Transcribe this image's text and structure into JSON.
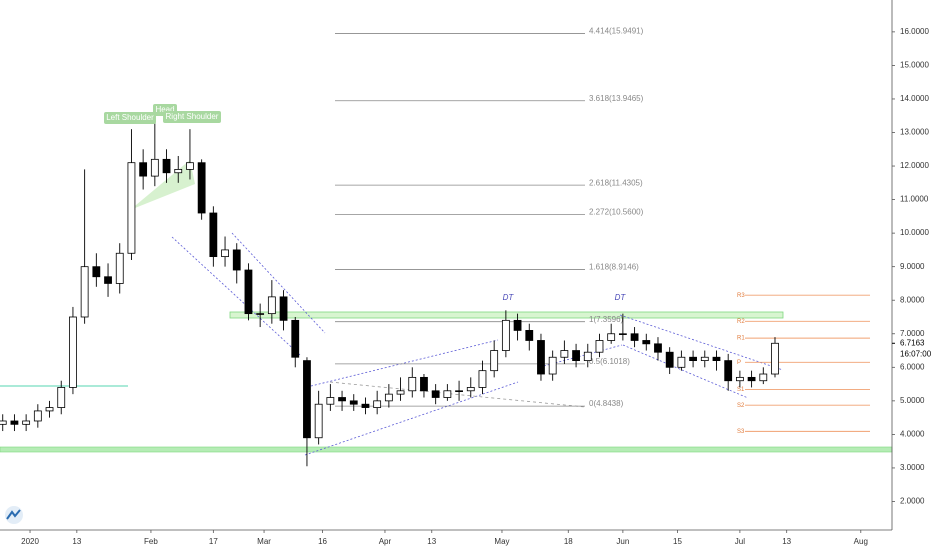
{
  "chart_data": {
    "type": "candlestick",
    "x": [
      -7,
      -4,
      -1,
      2,
      5,
      8,
      11,
      14,
      17,
      20,
      23,
      26,
      29,
      32,
      35,
      38,
      41,
      44,
      47,
      50,
      53,
      56,
      59,
      62,
      65,
      68,
      71,
      74,
      77,
      80,
      83,
      86,
      89,
      92,
      95,
      98,
      101,
      104,
      107,
      110,
      113,
      116,
      119,
      122,
      125,
      128,
      131,
      134,
      137,
      140,
      143,
      146,
      149,
      152,
      155,
      158,
      161,
      164,
      167,
      170,
      173,
      176,
      179,
      182,
      185,
      188,
      191
    ],
    "open": [
      4.3,
      4.4,
      4.3,
      4.4,
      4.7,
      4.8,
      5.4,
      7.5,
      9.0,
      8.7,
      8.5,
      9.4,
      12.1,
      11.7,
      12.2,
      11.8,
      11.9,
      12.1,
      10.6,
      9.3,
      9.5,
      8.9,
      7.6,
      7.6,
      8.1,
      7.4,
      6.2,
      3.9,
      4.9,
      5.1,
      5.0,
      4.9,
      4.8,
      5.0,
      5.2,
      5.3,
      5.7,
      5.3,
      5.1,
      5.3,
      5.3,
      5.4,
      5.9,
      6.5,
      7.4,
      7.1,
      6.8,
      5.8,
      6.3,
      6.5,
      6.2,
      6.45,
      6.8,
      7.0,
      7.0,
      6.8,
      6.7,
      6.45,
      6.0,
      6.3,
      6.2,
      6.3,
      6.2,
      5.6,
      5.7,
      5.6,
      5.8
    ],
    "high": [
      4.6,
      4.6,
      4.6,
      4.9,
      5.0,
      5.6,
      7.8,
      11.9,
      9.4,
      9.1,
      9.7,
      13.1,
      12.5,
      13.3,
      12.5,
      12.3,
      13.1,
      12.2,
      10.8,
      9.9,
      9.7,
      9.1,
      7.9,
      8.6,
      8.3,
      7.5,
      6.3,
      5.3,
      5.5,
      5.3,
      5.2,
      5.1,
      5.3,
      5.5,
      5.7,
      6.0,
      5.8,
      5.5,
      5.5,
      5.6,
      5.7,
      6.2,
      6.8,
      7.7,
      7.6,
      7.3,
      7.0,
      6.5,
      6.8,
      6.7,
      6.7,
      7.0,
      7.3,
      7.6,
      7.2,
      7.0,
      6.9,
      6.6,
      6.5,
      6.5,
      6.5,
      6.5,
      6.4,
      5.9,
      5.9,
      6.0,
      6.9
    ],
    "low": [
      4.1,
      4.1,
      4.1,
      4.2,
      4.5,
      4.6,
      5.2,
      7.3,
      8.4,
      8.1,
      8.2,
      9.2,
      11.3,
      11.4,
      11.5,
      11.5,
      11.6,
      10.4,
      9.0,
      9.0,
      8.5,
      7.4,
      7.2,
      7.3,
      7.1,
      6.0,
      3.05,
      3.7,
      4.7,
      4.7,
      4.7,
      4.6,
      4.6,
      4.8,
      5.0,
      5.1,
      5.1,
      4.9,
      5.0,
      5.0,
      5.1,
      5.2,
      5.7,
      6.3,
      6.8,
      6.5,
      5.6,
      5.6,
      6.1,
      6.0,
      6.0,
      6.3,
      6.7,
      6.8,
      6.6,
      6.5,
      6.2,
      5.8,
      5.9,
      6.0,
      6.0,
      5.9,
      5.3,
      5.4,
      5.4,
      5.5,
      5.7
    ],
    "close": [
      4.4,
      4.3,
      4.4,
      4.7,
      4.8,
      5.4,
      7.5,
      9.0,
      8.7,
      8.5,
      9.4,
      12.1,
      11.7,
      12.2,
      11.8,
      11.9,
      12.1,
      10.6,
      9.3,
      9.5,
      8.9,
      7.6,
      7.6,
      8.1,
      7.4,
      6.3,
      3.9,
      4.9,
      5.1,
      5.0,
      4.9,
      4.8,
      5.0,
      5.2,
      5.3,
      5.7,
      5.3,
      5.1,
      5.3,
      5.3,
      5.4,
      5.9,
      6.5,
      7.4,
      7.1,
      6.8,
      5.8,
      6.3,
      6.5,
      6.2,
      6.45,
      6.8,
      7.0,
      7.0,
      6.8,
      6.7,
      6.45,
      6.0,
      6.3,
      6.2,
      6.3,
      6.2,
      5.6,
      5.7,
      5.6,
      5.8,
      6.7163
    ],
    "xlim": [
      -7.7,
      221
    ],
    "ylim": [
      1.15,
      16.95
    ],
    "grid": false,
    "xticks": [
      {
        "value": 0,
        "label": "2020"
      },
      {
        "value": 12,
        "label": "13"
      },
      {
        "value": 31,
        "label": "Feb"
      },
      {
        "value": 47,
        "label": "17"
      },
      {
        "value": 60,
        "label": "Mar"
      },
      {
        "value": 75,
        "label": "16"
      },
      {
        "value": 91,
        "label": "Apr"
      },
      {
        "value": 103,
        "label": "13"
      },
      {
        "value": 121,
        "label": "May"
      },
      {
        "value": 138,
        "label": "18"
      },
      {
        "value": 152,
        "label": "Jun"
      },
      {
        "value": 166,
        "label": "15"
      },
      {
        "value": 182,
        "label": "Jul"
      },
      {
        "value": 194,
        "label": "13"
      },
      {
        "value": 213,
        "label": "Aug"
      }
    ],
    "yticks": [
      {
        "value": 2,
        "label": "2.0000"
      },
      {
        "value": 3,
        "label": "3.0000"
      },
      {
        "value": 4,
        "label": "4.0000"
      },
      {
        "value": 5,
        "label": "5.0000"
      },
      {
        "value": 6,
        "label": "6.0000"
      },
      {
        "value": 7,
        "label": "7.0000"
      },
      {
        "value": 8,
        "label": "8.0000"
      },
      {
        "value": 9,
        "label": "9.0000"
      },
      {
        "value": 10,
        "label": "10.0000"
      },
      {
        "value": 11,
        "label": "11.0000"
      },
      {
        "value": 12,
        "label": "12.0000"
      },
      {
        "value": 13,
        "label": "13.0000"
      },
      {
        "value": 14,
        "label": "14.0000"
      },
      {
        "value": 15,
        "label": "15.0000"
      },
      {
        "value": 16,
        "label": "16.0000"
      }
    ],
    "fib_levels": [
      {
        "value": 15.9491,
        "label": "4.414(15.9491)"
      },
      {
        "value": 13.9465,
        "label": "3.618(13.9465)"
      },
      {
        "value": 11.4305,
        "label": "2.618(11.4305)"
      },
      {
        "value": 10.56,
        "label": "2.272(10.5600)"
      },
      {
        "value": 8.9146,
        "label": "1.618(8.9146)"
      },
      {
        "value": 7.3596,
        "label": "1(7.3596)"
      },
      {
        "value": 6.1018,
        "label": "0.5(6.1018)"
      },
      {
        "value": 4.8438,
        "label": "0(4.8438)"
      }
    ],
    "pivots": [
      {
        "value": 8.15,
        "label": "R3"
      },
      {
        "value": 7.37,
        "label": "R2"
      },
      {
        "value": 6.87,
        "label": "R1"
      },
      {
        "value": 6.15,
        "label": "P"
      },
      {
        "value": 5.34,
        "label": "S1"
      },
      {
        "value": 4.87,
        "label": "S2"
      },
      {
        "value": 4.09,
        "label": "S3"
      }
    ],
    "annotations": [
      "Left Shoulder",
      "Head",
      "Right Shoulder",
      "DT",
      "DT"
    ],
    "timer": "16:07:00"
  }
}
